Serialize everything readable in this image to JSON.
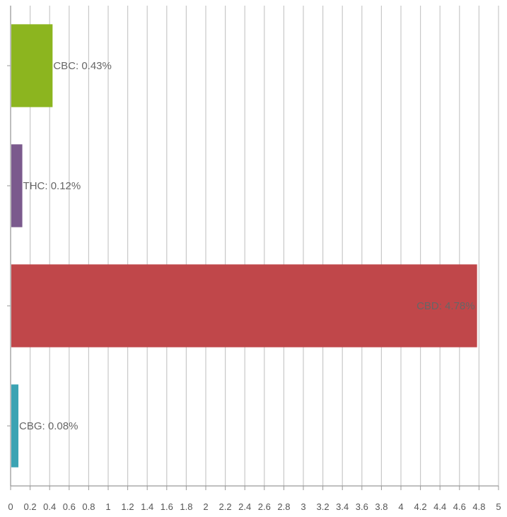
{
  "chart_data": {
    "type": "bar",
    "orientation": "horizontal",
    "categories": [
      "CBC",
      "THC",
      "CBD",
      "CBG"
    ],
    "values": [
      0.43,
      0.12,
      4.78,
      0.08
    ],
    "data_labels": [
      "CBC: 0.43%",
      "THC: 0.12%",
      "CBD: 4.78%",
      "CBG: 0.08%"
    ],
    "colors": [
      "#8cb51f",
      "#7b5a8d",
      "#c0474a",
      "#3ba3b3"
    ],
    "xlim": [
      0,
      5
    ],
    "x_ticks": [
      "0",
      "0.2",
      "0.4",
      "0.6",
      "0.8",
      "1",
      "1.2",
      "1.4",
      "1.6",
      "1.8",
      "2",
      "2.2",
      "2.4",
      "2.6",
      "2.8",
      "3",
      "3.2",
      "3.4",
      "3.6",
      "3.8",
      "4",
      "4.2",
      "4.4",
      "4.6",
      "4.8",
      "5"
    ],
    "grid": true,
    "legend": "none",
    "title": "",
    "xlabel": "",
    "ylabel": ""
  }
}
